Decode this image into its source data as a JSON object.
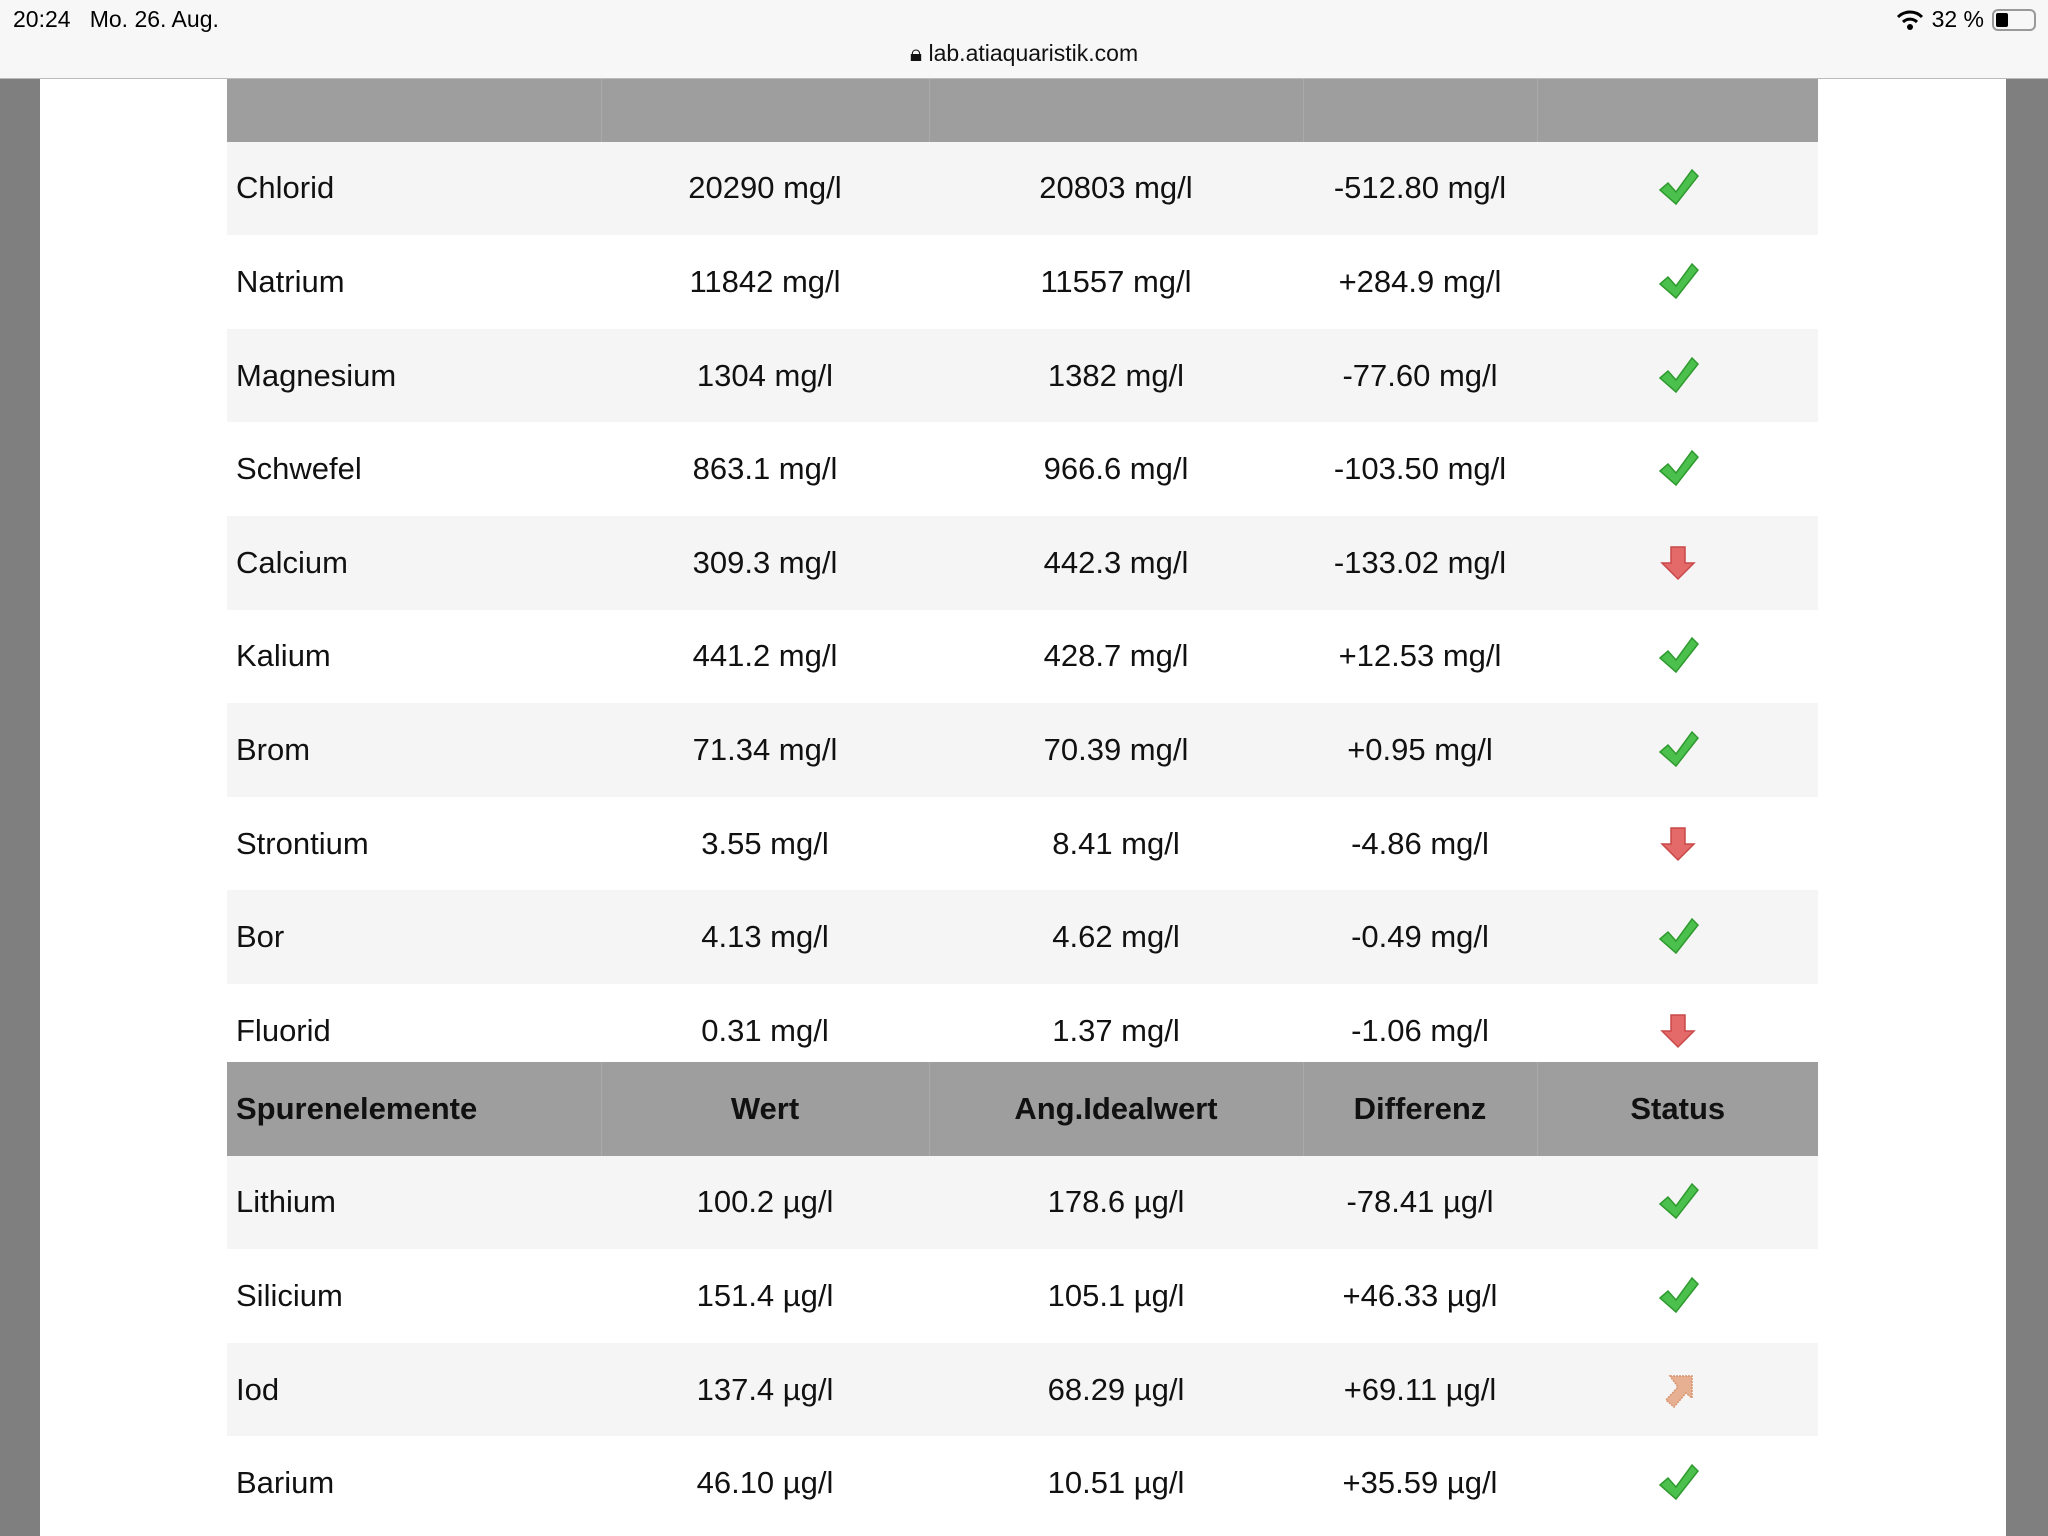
{
  "statusbar": {
    "time": "20:24",
    "date": "Mo. 26. Aug.",
    "url": "lab.atiaquaristik.com",
    "battery": "32 %",
    "battery_level": 0.32
  },
  "colors": {
    "ok": "#4cc04c",
    "low": "#e05a5a",
    "high": "#e0a080",
    "header": "#9e9e9e"
  },
  "main_rows": [
    {
      "name": "Chlorid",
      "value": "20290 mg/l",
      "ideal": "20803 mg/l",
      "diff": "-512.80 mg/l",
      "status": "ok"
    },
    {
      "name": "Natrium",
      "value": "11842 mg/l",
      "ideal": "11557 mg/l",
      "diff": "+284.9 mg/l",
      "status": "ok"
    },
    {
      "name": "Magnesium",
      "value": "1304 mg/l",
      "ideal": "1382 mg/l",
      "diff": "-77.60 mg/l",
      "status": "ok"
    },
    {
      "name": "Schwefel",
      "value": "863.1 mg/l",
      "ideal": "966.6 mg/l",
      "diff": "-103.50 mg/l",
      "status": "ok"
    },
    {
      "name": "Calcium",
      "value": "309.3 mg/l",
      "ideal": "442.3 mg/l",
      "diff": "-133.02 mg/l",
      "status": "low"
    },
    {
      "name": "Kalium",
      "value": "441.2 mg/l",
      "ideal": "428.7 mg/l",
      "diff": "+12.53 mg/l",
      "status": "ok"
    },
    {
      "name": "Brom",
      "value": "71.34 mg/l",
      "ideal": "70.39 mg/l",
      "diff": "+0.95 mg/l",
      "status": "ok"
    },
    {
      "name": "Strontium",
      "value": "3.55 mg/l",
      "ideal": "8.41 mg/l",
      "diff": "-4.86 mg/l",
      "status": "low"
    },
    {
      "name": "Bor",
      "value": "4.13 mg/l",
      "ideal": "4.62 mg/l",
      "diff": "-0.49 mg/l",
      "status": "ok"
    },
    {
      "name": "Fluorid",
      "value": "0.31 mg/l",
      "ideal": "1.37 mg/l",
      "diff": "-1.06 mg/l",
      "status": "low"
    }
  ],
  "trace_header": {
    "name": "Spurenelemente",
    "value": "Wert",
    "ideal": "Ang.Idealwert",
    "diff": "Differenz",
    "status": "Status"
  },
  "trace_rows": [
    {
      "name": "Lithium",
      "value": "100.2 µg/l",
      "ideal": "178.6 µg/l",
      "diff": "-78.41 µg/l",
      "status": "ok"
    },
    {
      "name": "Silicium",
      "value": "151.4 µg/l",
      "ideal": "105.1 µg/l",
      "diff": "+46.33 µg/l",
      "status": "ok"
    },
    {
      "name": "Iod",
      "value": "137.4 µg/l",
      "ideal": "68.29 µg/l",
      "diff": "+69.11 µg/l",
      "status": "high"
    },
    {
      "name": "Barium",
      "value": "46.10 µg/l",
      "ideal": "10.51 µg/l",
      "diff": "+35.59 µg/l",
      "status": "ok"
    }
  ]
}
